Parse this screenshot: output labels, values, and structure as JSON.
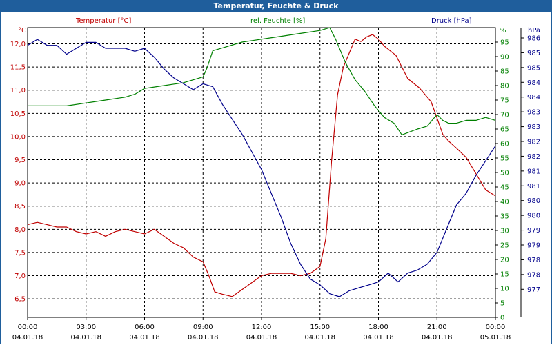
{
  "window": {
    "title": "Temperatur, Feuchte & Druck"
  },
  "chart_data": {
    "type": "line",
    "title": "Temperatur, Feuchte & Druck",
    "x": [
      "00:00",
      "03:00",
      "06:00",
      "09:00",
      "12:00",
      "15:00",
      "18:00",
      "21:00",
      "00:00"
    ],
    "x_dates": [
      "04.01.18",
      "04.01.18",
      "04.01.18",
      "04.01.18",
      "04.01.18",
      "04.01.18",
      "04.01.18",
      "04.01.18",
      "05.01.18"
    ],
    "xlim_hours": [
      0,
      24
    ],
    "colors": {
      "temperature": "#c00000",
      "humidity": "#008000",
      "pressure": "#00008b"
    },
    "axes": {
      "left": {
        "label": "Temperatur [°C]",
        "unit": "°C",
        "min": 6.1,
        "max": 12.35,
        "ticks": [
          "12,0",
          "11,5",
          "11,0",
          "10,5",
          "10,0",
          "9,5",
          "9,0",
          "8,5",
          "8,0",
          "7,5",
          "7,0",
          "6,5"
        ],
        "tick_values": [
          12.0,
          11.5,
          11.0,
          10.5,
          10.0,
          9.5,
          9.0,
          8.5,
          8.0,
          7.5,
          7.0,
          6.5
        ]
      },
      "right_inner": {
        "label": "rel. Feuchte [%]",
        "unit": "%",
        "min": 0,
        "max": 100,
        "ticks": [
          "95",
          "90",
          "85",
          "80",
          "75",
          "70",
          "65",
          "60",
          "55",
          "50",
          "45",
          "40",
          "35",
          "30",
          "25",
          "20",
          "15",
          "10",
          "5",
          "0"
        ],
        "tick_values": [
          95,
          90,
          85,
          80,
          75,
          70,
          65,
          60,
          55,
          50,
          45,
          40,
          35,
          30,
          25,
          20,
          15,
          10,
          5,
          0
        ]
      },
      "right_outer": {
        "label": "Druck [hPa]",
        "unit": "hPa",
        "min": 976.8,
        "max": 986.6,
        "ticks": [
          "986",
          "985",
          "985",
          "984",
          "984",
          "983",
          "983",
          "982",
          "982",
          "981",
          "981",
          "980",
          "980",
          "979",
          "979",
          "978",
          "978",
          "977"
        ],
        "tick_values": [
          986.25,
          985.75,
          985.25,
          984.75,
          984.25,
          983.75,
          983.25,
          982.75,
          982.25,
          981.75,
          981.25,
          980.75,
          980.25,
          979.75,
          979.25,
          978.75,
          978.25,
          977.75
        ]
      }
    },
    "series": [
      {
        "name": "Temperatur",
        "axis": "left",
        "color": "#c00000",
        "x": [
          0,
          0.5,
          1,
          1.5,
          2,
          2.5,
          3,
          3.5,
          4,
          4.5,
          5,
          5.5,
          6,
          6.5,
          7,
          7.5,
          8,
          8.5,
          9,
          9.3,
          9.6,
          10,
          10.5,
          11,
          11.5,
          12,
          12.5,
          13,
          13.5,
          14,
          14.5,
          15,
          15.3,
          15.6,
          15.9,
          16.2,
          16.5,
          16.8,
          17.1,
          17.4,
          17.7,
          18,
          18.3,
          18.6,
          18.9,
          19.2,
          19.5,
          19.8,
          20.1,
          20.4,
          20.7,
          21,
          21.3,
          21.6,
          22,
          22.5,
          23,
          23.5,
          24
        ],
        "values": [
          8.1,
          8.15,
          8.1,
          8.05,
          8.05,
          7.95,
          7.9,
          7.95,
          7.85,
          7.95,
          8.0,
          7.95,
          7.9,
          8.0,
          7.85,
          7.7,
          7.6,
          7.4,
          7.3,
          7.0,
          6.65,
          6.6,
          6.55,
          6.7,
          6.85,
          7.0,
          7.05,
          7.05,
          7.05,
          7.0,
          7.05,
          7.2,
          7.8,
          9.5,
          10.9,
          11.5,
          11.8,
          12.1,
          12.05,
          12.15,
          12.2,
          12.1,
          11.95,
          11.85,
          11.75,
          11.5,
          11.25,
          11.15,
          11.05,
          10.9,
          10.75,
          10.4,
          10.05,
          9.9,
          9.75,
          9.55,
          9.2,
          8.85,
          8.72
        ]
      },
      {
        "name": "rel. Feuchte",
        "axis": "right_inner",
        "color": "#008000",
        "x": [
          0,
          1,
          2,
          3,
          4,
          5,
          5.5,
          6,
          7,
          8,
          9,
          9.2,
          9.5,
          10,
          11,
          12,
          13,
          14,
          15,
          15.5,
          15.8,
          16.3,
          16.8,
          17.3,
          17.8,
          18.3,
          18.8,
          19.2,
          19.6,
          20,
          20.5,
          21,
          21.3,
          21.6,
          22,
          22.5,
          23,
          23.5,
          24
        ],
        "values": [
          73,
          73,
          73,
          74,
          75,
          76,
          77,
          79,
          80,
          81,
          83,
          86,
          92,
          93,
          95,
          96,
          97,
          98,
          99,
          100,
          96,
          88,
          82,
          78,
          73,
          69,
          67,
          63,
          64,
          65,
          66,
          70,
          68,
          67,
          67,
          68,
          68,
          69,
          68
        ]
      },
      {
        "name": "Druck",
        "axis": "right_outer",
        "color": "#00008b",
        "x": [
          0,
          0.5,
          1,
          1.5,
          2,
          2.5,
          3,
          3.5,
          4,
          4.5,
          5,
          5.5,
          6,
          6.5,
          7,
          7.5,
          8,
          8.5,
          9,
          9.5,
          10,
          10.5,
          11,
          11.5,
          12,
          12.5,
          13,
          13.5,
          14,
          14.5,
          15,
          15.5,
          16,
          16.5,
          17,
          17.5,
          18,
          18.5,
          19,
          19.5,
          20,
          20.5,
          21,
          21.5,
          22,
          22.5,
          23,
          23.5,
          24
        ],
        "values": [
          986.0,
          986.2,
          986.0,
          986.0,
          985.7,
          985.9,
          986.1,
          986.1,
          985.9,
          985.9,
          985.9,
          985.8,
          985.9,
          985.6,
          985.2,
          984.9,
          984.7,
          984.5,
          984.7,
          984.6,
          984.0,
          983.5,
          983.0,
          982.4,
          981.8,
          981.0,
          980.2,
          979.3,
          978.6,
          978.1,
          977.9,
          977.6,
          977.5,
          977.7,
          977.8,
          977.9,
          978.0,
          978.3,
          978.0,
          978.3,
          978.4,
          978.6,
          979.0,
          979.8,
          980.6,
          981.0,
          981.6,
          982.1,
          982.6
        ]
      }
    ]
  }
}
